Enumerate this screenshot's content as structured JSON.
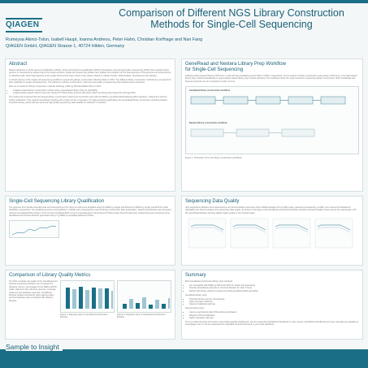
{
  "header": {
    "logo_text": "QIAGEN",
    "title_line1": "Comparison of Different NGS Library Construction",
    "title_line2": "Methods for Single-Cell Sequencing",
    "authors": "Rumeysa Akinci-Tolun, Isabell Haupt, Ioanna Andreou, Peter Hahn, Christian Korfhage and Nan Fang",
    "affiliation": "QIAGEN GmbH, QIAGEN Strasse 1, 40724 Hilden, Germany"
  },
  "abstract": {
    "title": "Abstract",
    "p1": "Recent advances in whole genome amplification (WGA), whole transcriptome amplification (WTA) technologies and next-generation sequencing (NGS) have enabled whole genome or transcriptome sequencing at the single-cell level. Single-cell sequencing studies have yielded new insights into the heterogeneity of the genome and transcriptome in individual cells. Such heterogeneity at the single-cell level has been shown to be closely related to cellular function, differentiation, development and disease.",
    "p2": "A critical element of the single-cell sequencing workflow is sequencing library construction following WGA or WTA. Two different library construction methods are compared for their suitability for single-cell sequencing. The efficiency of library construction, uniformity and quality of sequencing data obtained were evaluated.",
    "p3": "Here we compared 2 library construction methods following 1-800 ng WGA/amplified WGA or WTA:",
    "bullets": [
      "A ligation-based library construction method using a GeneRead Library Prep Kit (QIAGEN)",
      "A tagmentation-based method using the Nextera XT DNA Library Prep Kit (Illumina), which simultaneously fragments and tags DNA"
    ],
    "p4": "The results demonstrated that the Nextera library construction method can be directly used with the REPLI-g amplified DNA following WGA reactions, without the need for further purification. This could be beneficial if working with a high number of samples. For high-sensitivity applications the GeneRead library construction method provided consistent library yields with low input and high-quality sequencing data suitable for detection of variants."
  },
  "workflow": {
    "title_line1": "GeneRead and Nextera Library Prep Workflow",
    "title_line2": "for Single-Cell Sequencing",
    "text": "Following WGA-based (WGA or WTA from 1 cell) with the amplified genomic DNA or cDNA, respectively, can be subject to library construction using either a PCR-free, enzymatic-based library prep method (GeneRead) or tagmentation-based library prep method (Nextera). The workflows show the steps involved in sequencing library construction. Both GeneRead and Nextera protocols can be completed in under 3 hours.",
    "label_a": "GeneRead library construction workflow",
    "label_b": "Nextera library construction workflow",
    "caption": "Figure 1. Schematic of the two library construction workflows."
  },
  "qualification": {
    "title": "Single-Cell Sequencing Library Qualification",
    "text": "The genomic from double-stranded cells and transcriptome from three 10 cells were amplified using the REPLI-g Single Cell WGA Kit or REPLI-g Single Cell WTA Kit (both QIAGEN), respectively. The amplified genomes (1mpl gDNA) or (cDNA) were subsequently used for library construction after quantitation. Sequencing libraries were prepared using the GeneRead DNA Library I Core Kit and GeneRead DNA I Amp Kit (GeneRead) or the Nextera XT DNA Library Prep Kit (Illumina). Sequencing was conducted using GeneRead and Nextera libraries generated using 1 ng REPLI-g amplified gDNA and cDNA."
  },
  "data_quality": {
    "title": "Sequencing Data Quality",
    "text": "All 8 sequencing libraries were sequenced on an Illumina MiSeq instrument with a MiSeq Reagent Kit v2 (300-cycles, paired-end sequencing, 2x150). CLC Genomics Workbench (QIAGEN) was used to analyze the sequencing data quality. As shown in the figure, both GeneRead and Nextera libraries showed consistent quality scores across the read length, with the GeneRead libraries showing slightly higher quality in the forward reads."
  },
  "metrics": {
    "title": "Comparison of Library Quality Metrics",
    "text": "To further evaluate the quality of the GeneRead and Nextera sequencing libraries, we compared the following metrics: percentages of the REPLI-g/WTA reads mapped to the reference genome, coverage uniformity and duplicate read rate. GeneRead libraries yielded consistently high mapping rates and low duplicate rates compared with Nextera libraries.",
    "caption_a": "Figure 4. Mapping rates of GeneRead and Nextera libraries.",
    "caption_b": "Figure 5. Duplicate rates of GeneRead and Nextera libraries."
  },
  "summary": {
    "title": "Summary",
    "intro": "Both GeneRead and Nextera library prep methods:",
    "common": [
      "Are compatible with REPLI-g WGA and WTA for single-cell sequencing",
      "Provide streamlined protocols to construct libraries in under 3 hours",
      "Deliver high library yields for sequencing WGA-amplified gDNA and cDNA"
    ],
    "generead_head": "GeneRead library prep:",
    "generead": [
      "PCR-free library prep for minimal bias",
      "High coverage uniformity",
      "Superior duplicate read rate"
    ],
    "nextera_head": "Nextera library prep:",
    "nextera": [
      "Can be used directly after WGA without purification",
      "Requires PCR amplification",
      "Higher duplicate read rate"
    ],
    "footer_note": "For up-to-date licensing information and product-specific disclaimers, see the respective QIAGEN kit handbook or user manual. QIAGEN kit handbooks and user manuals are available at www.qiagen.com or can be requested from QIAGEN Technical Services or your local distributor."
  },
  "footer": {
    "tagline": "Sample to Insight"
  },
  "colors": {
    "brand": "#1a6f86",
    "series_generead": "#1a6f86",
    "series_nextera": "#9fc5d1"
  }
}
